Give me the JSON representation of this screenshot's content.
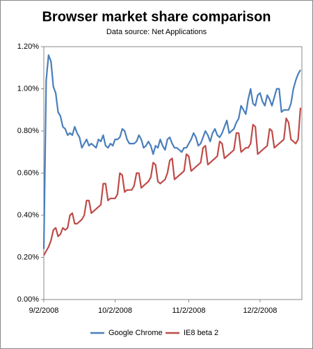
{
  "chart_data": {
    "type": "line",
    "title": "Browser market share comparison",
    "subtitle": "Data source: Net Applications",
    "x": [
      "2008-09-02",
      "2008-09-03",
      "2008-09-04",
      "2008-09-05",
      "2008-09-06",
      "2008-09-07",
      "2008-09-08",
      "2008-09-09",
      "2008-09-10",
      "2008-09-11",
      "2008-09-12",
      "2008-09-13",
      "2008-09-14",
      "2008-09-15",
      "2008-09-16",
      "2008-09-17",
      "2008-09-18",
      "2008-09-19",
      "2008-09-20",
      "2008-09-21",
      "2008-09-22",
      "2008-09-23",
      "2008-09-24",
      "2008-09-25",
      "2008-09-26",
      "2008-09-27",
      "2008-09-28",
      "2008-09-29",
      "2008-09-30",
      "2008-10-01",
      "2008-10-02",
      "2008-10-03",
      "2008-10-04",
      "2008-10-05",
      "2008-10-06",
      "2008-10-07",
      "2008-10-08",
      "2008-10-09",
      "2008-10-10",
      "2008-10-11",
      "2008-10-12",
      "2008-10-13",
      "2008-10-14",
      "2008-10-15",
      "2008-10-16",
      "2008-10-17",
      "2008-10-18",
      "2008-10-19",
      "2008-10-20",
      "2008-10-21",
      "2008-10-22",
      "2008-10-23",
      "2008-10-24",
      "2008-10-25",
      "2008-10-26",
      "2008-10-27",
      "2008-10-28",
      "2008-10-29",
      "2008-10-30",
      "2008-10-31",
      "2008-11-01",
      "2008-11-02",
      "2008-11-03",
      "2008-11-04",
      "2008-11-05",
      "2008-11-06",
      "2008-11-07",
      "2008-11-08",
      "2008-11-09",
      "2008-11-10",
      "2008-11-11",
      "2008-11-12",
      "2008-11-13",
      "2008-11-14",
      "2008-11-15",
      "2008-11-16",
      "2008-11-17",
      "2008-11-18",
      "2008-11-19",
      "2008-11-20",
      "2008-11-21",
      "2008-11-22",
      "2008-11-23",
      "2008-11-24",
      "2008-11-25",
      "2008-11-26",
      "2008-11-27",
      "2008-11-28",
      "2008-11-29",
      "2008-11-30",
      "2008-12-01",
      "2008-12-02",
      "2008-12-03",
      "2008-12-04",
      "2008-12-05",
      "2008-12-06",
      "2008-12-07",
      "2008-12-08",
      "2008-12-09",
      "2008-12-10",
      "2008-12-11",
      "2008-12-12",
      "2008-12-13",
      "2008-12-14",
      "2008-12-15",
      "2008-12-16",
      "2008-12-17",
      "2008-12-18",
      "2008-12-19"
    ],
    "series": [
      {
        "name": "Google Chrome",
        "color": "#4a7ebb",
        "values": [
          0.24,
          1.04,
          1.16,
          1.13,
          1.01,
          0.98,
          0.89,
          0.87,
          0.82,
          0.81,
          0.78,
          0.79,
          0.78,
          0.82,
          0.79,
          0.77,
          0.72,
          0.74,
          0.76,
          0.73,
          0.74,
          0.73,
          0.72,
          0.76,
          0.75,
          0.78,
          0.73,
          0.72,
          0.74,
          0.73,
          0.76,
          0.76,
          0.77,
          0.81,
          0.8,
          0.76,
          0.74,
          0.74,
          0.74,
          0.75,
          0.78,
          0.76,
          0.72,
          0.73,
          0.75,
          0.73,
          0.69,
          0.73,
          0.72,
          0.76,
          0.73,
          0.71,
          0.76,
          0.77,
          0.74,
          0.72,
          0.72,
          0.71,
          0.7,
          0.72,
          0.72,
          0.74,
          0.76,
          0.79,
          0.77,
          0.73,
          0.74,
          0.77,
          0.8,
          0.78,
          0.75,
          0.79,
          0.81,
          0.78,
          0.77,
          0.79,
          0.82,
          0.85,
          0.79,
          0.8,
          0.81,
          0.84,
          0.86,
          0.92,
          0.9,
          0.88,
          0.95,
          1.0,
          0.93,
          0.92,
          0.97,
          0.98,
          0.94,
          0.92,
          0.97,
          0.95,
          0.92,
          0.96,
          1.0,
          1.0,
          0.89,
          0.9,
          0.9,
          0.9,
          0.93,
          1.0,
          1.04,
          1.07,
          1.09
        ]
      },
      {
        "name": "IE8 beta 2",
        "color": "#be4b48",
        "values": [
          0.21,
          0.23,
          0.25,
          0.28,
          0.33,
          0.34,
          0.3,
          0.31,
          0.34,
          0.33,
          0.34,
          0.4,
          0.41,
          0.36,
          0.36,
          0.37,
          0.38,
          0.4,
          0.47,
          0.47,
          0.41,
          0.42,
          0.43,
          0.44,
          0.45,
          0.55,
          0.55,
          0.47,
          0.48,
          0.48,
          0.48,
          0.5,
          0.6,
          0.59,
          0.51,
          0.52,
          0.52,
          0.52,
          0.54,
          0.6,
          0.6,
          0.53,
          0.54,
          0.55,
          0.56,
          0.58,
          0.65,
          0.64,
          0.56,
          0.55,
          0.56,
          0.57,
          0.6,
          0.66,
          0.67,
          0.57,
          0.58,
          0.59,
          0.6,
          0.61,
          0.69,
          0.68,
          0.61,
          0.62,
          0.63,
          0.64,
          0.65,
          0.72,
          0.73,
          0.64,
          0.65,
          0.66,
          0.67,
          0.68,
          0.75,
          0.74,
          0.67,
          0.68,
          0.69,
          0.7,
          0.71,
          0.79,
          0.79,
          0.7,
          0.71,
          0.72,
          0.72,
          0.74,
          0.83,
          0.82,
          0.69,
          0.7,
          0.71,
          0.72,
          0.73,
          0.81,
          0.8,
          0.72,
          0.73,
          0.74,
          0.75,
          0.76,
          0.86,
          0.84,
          0.76,
          0.75,
          0.74,
          0.76,
          0.91
        ]
      }
    ],
    "xlim": [
      "2008-09-02",
      "2008-12-19"
    ],
    "xticks": [
      {
        "value": "2008-09-02",
        "label": "9/2/2008"
      },
      {
        "value": "2008-10-02",
        "label": "10/2/2008"
      },
      {
        "value": "2008-11-02",
        "label": "11/2/2008"
      },
      {
        "value": "2008-12-02",
        "label": "12/2/2008"
      }
    ],
    "ylim": [
      0,
      1.2
    ],
    "yticks": [
      {
        "value": 0,
        "label": "0.00%"
      },
      {
        "value": 0.2,
        "label": "0.20%"
      },
      {
        "value": 0.4,
        "label": "0.40%"
      },
      {
        "value": 0.6,
        "label": "0.60%"
      },
      {
        "value": 0.8,
        "label": "0.80%"
      },
      {
        "value": 1.0,
        "label": "1.00%"
      },
      {
        "value": 1.2,
        "label": "1.20%"
      }
    ],
    "legend": "bottom"
  }
}
